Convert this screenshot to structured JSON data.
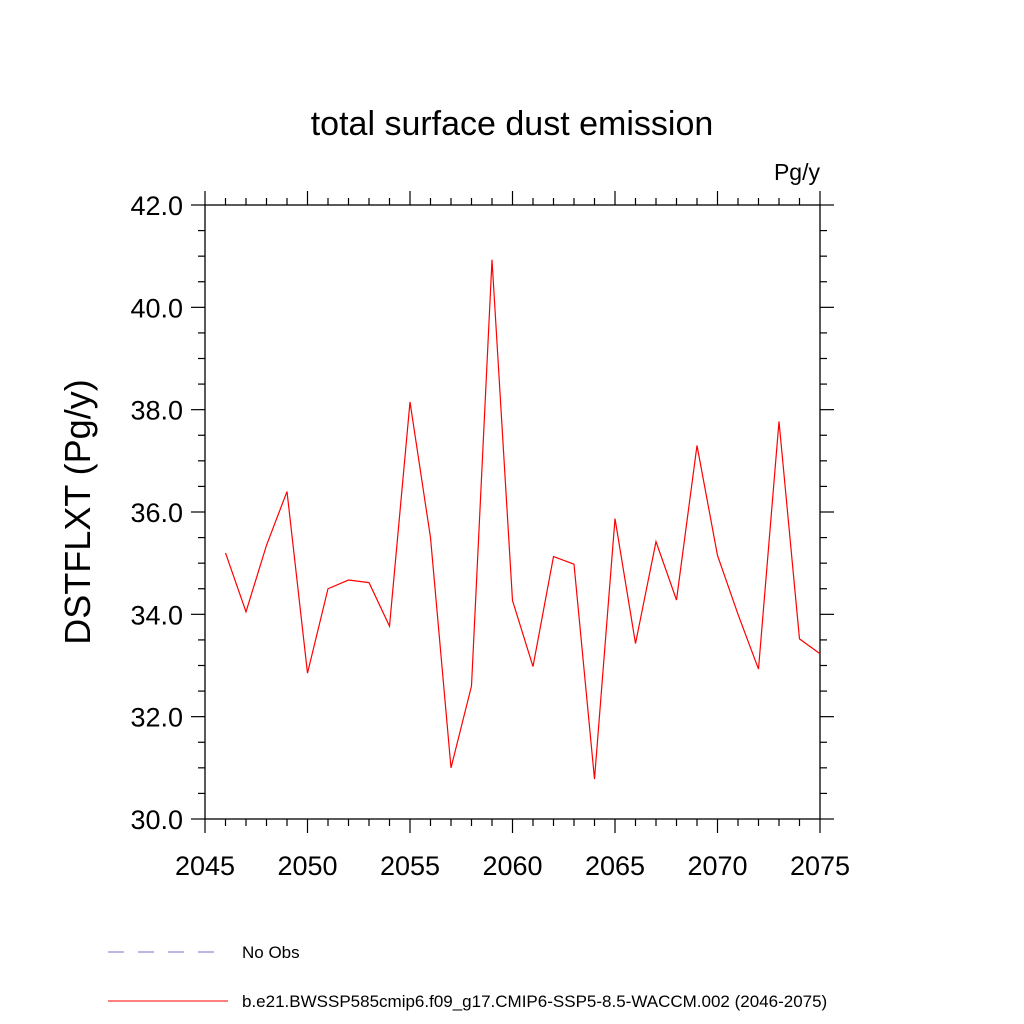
{
  "chart_data": {
    "type": "line",
    "title": "total surface dust emission",
    "units_label": "Pg/y",
    "ylabel": "DSTFLXT  (Pg/y)",
    "xlabel": "",
    "xlim": [
      2045,
      2075
    ],
    "ylim": [
      30.0,
      42.0
    ],
    "x_ticks": [
      2045,
      2050,
      2055,
      2060,
      2065,
      2070,
      2075
    ],
    "x_tick_labels": [
      "2045",
      "2050",
      "2055",
      "2060",
      "2065",
      "2070",
      "2075"
    ],
    "y_ticks": [
      30.0,
      32.0,
      34.0,
      36.0,
      38.0,
      40.0,
      42.0
    ],
    "y_tick_labels": [
      "30.0",
      "32.0",
      "34.0",
      "36.0",
      "38.0",
      "40.0",
      "42.0"
    ],
    "grid": false,
    "legend_position": "bottom",
    "series": [
      {
        "name": "b.e21.BWSSP585cmip6.f09_g17.CMIP6-SSP5-8.5-WACCM.002 (2046-2075)",
        "color": "#ff0000",
        "style": "solid",
        "x": [
          2046,
          2047,
          2048,
          2049,
          2050,
          2051,
          2052,
          2053,
          2054,
          2055,
          2056,
          2057,
          2058,
          2059,
          2060,
          2061,
          2062,
          2063,
          2064,
          2065,
          2066,
          2067,
          2068,
          2069,
          2070,
          2071,
          2072,
          2073,
          2074,
          2075
        ],
        "values": [
          35.2,
          34.05,
          35.35,
          36.4,
          32.85,
          34.5,
          34.67,
          34.62,
          33.77,
          38.15,
          35.5,
          31.0,
          32.6,
          40.93,
          34.27,
          32.98,
          35.13,
          34.98,
          30.78,
          35.87,
          33.43,
          35.42,
          34.28,
          37.3,
          35.15,
          34.0,
          32.93,
          37.77,
          33.52,
          33.23
        ]
      }
    ],
    "legend": [
      {
        "label": "No Obs",
        "color": "#7b6fd0",
        "style": "dashed"
      },
      {
        "label": "b.e21.BWSSP585cmip6.f09_g17.CMIP6-SSP5-8.5-WACCM.002 (2046-2075)",
        "color": "#ff0000",
        "style": "solid"
      }
    ]
  }
}
